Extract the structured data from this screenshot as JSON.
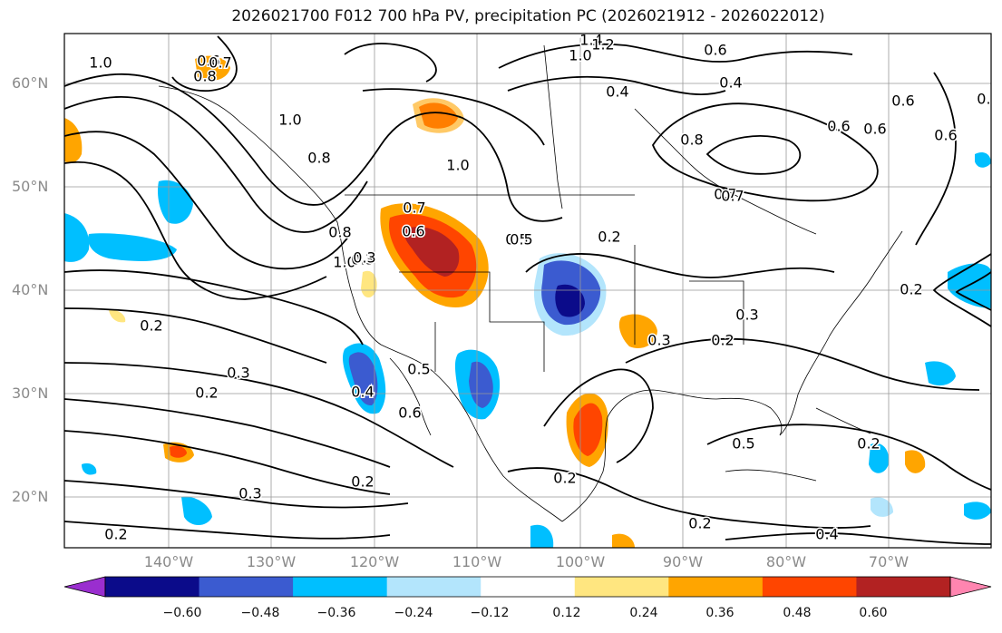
{
  "title": "2026021700 F012 700 hPa PV, precipitation PC (2026021912 - 2026022012)",
  "lat_labels": [
    "60°N",
    "50°N",
    "40°N",
    "30°N",
    "20°N"
  ],
  "lon_labels": [
    "140°W",
    "130°W",
    "120°W",
    "110°W",
    "100°W",
    "90°W",
    "80°W",
    "70°W"
  ],
  "colorbar": {
    "tick_labels": [
      "−0.60",
      "−0.48",
      "−0.36",
      "−0.24",
      "−0.12",
      "0.12",
      "0.24",
      "0.36",
      "0.48",
      "0.60"
    ],
    "colors": [
      "#9a2ecf",
      "#0b0b8a",
      "#3b5bd0",
      "#00bfff",
      "#b3e5fc",
      "#ffffff",
      "#ffe680",
      "#ffa500",
      "#ff4500",
      "#b22222",
      "#ff85b0"
    ]
  },
  "contour_labels": [
    "0.6",
    "0.7",
    "0.8",
    "1.0",
    "1.4",
    "1.2",
    "1.0",
    "0.6",
    "0.4",
    "0.6",
    "0.6",
    "1.0",
    "0.8",
    "1.0",
    "0.7",
    "1.0",
    "0.8",
    "0.7",
    "0.5",
    "0.2",
    "0.3",
    "0.3",
    "0.2",
    "0.3",
    "0.2",
    "0.4",
    "0.5",
    "0.6",
    "0.2",
    "0.3",
    "0.2",
    "0.2",
    "0.3",
    "0.2",
    "0.4",
    "0.5",
    "0.2",
    "0.2",
    "0.3",
    "0.3",
    "0.2",
    "0.5",
    "0.6",
    "0.8",
    "0.6",
    "0.6",
    "0.4",
    "0.7"
  ]
}
